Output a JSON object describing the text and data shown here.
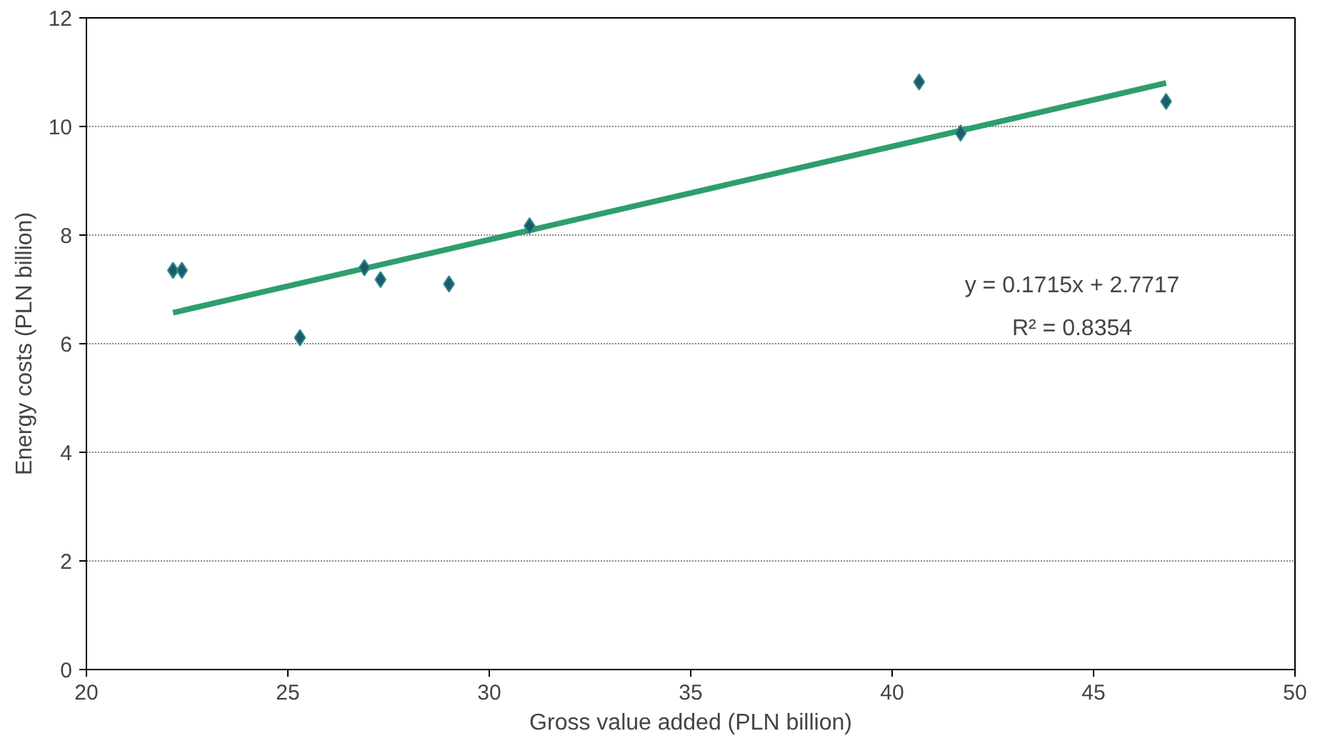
{
  "chart_data": {
    "type": "scatter",
    "xlabel": "Gross value added (PLN billion)",
    "ylabel": "Energy costs (PLN billion)",
    "xlim": [
      20,
      50
    ],
    "xticks": [
      20,
      25,
      30,
      35,
      40,
      45,
      50
    ],
    "ylim": [
      0,
      12
    ],
    "yticks": [
      0,
      2,
      4,
      6,
      8,
      10,
      12
    ],
    "grid": "y",
    "series": [
      {
        "marker": "diamond",
        "color": "#1d5a6b",
        "x": [
          22.15,
          22.37,
          25.3,
          26.9,
          27.3,
          29.0,
          31.0,
          40.67,
          41.7,
          46.8
        ],
        "values": [
          7.35,
          7.35,
          6.11,
          7.4,
          7.18,
          7.1,
          8.17,
          10.82,
          9.88,
          10.46
        ]
      },
      {
        "type": "line",
        "color": "#2e9e6e",
        "x": [
          22.15,
          46.8
        ],
        "values": [
          6.57,
          10.8
        ]
      }
    ],
    "annotations": [
      "y = 0.1715x + 2.7717",
      "R² = 0.8354"
    ]
  }
}
